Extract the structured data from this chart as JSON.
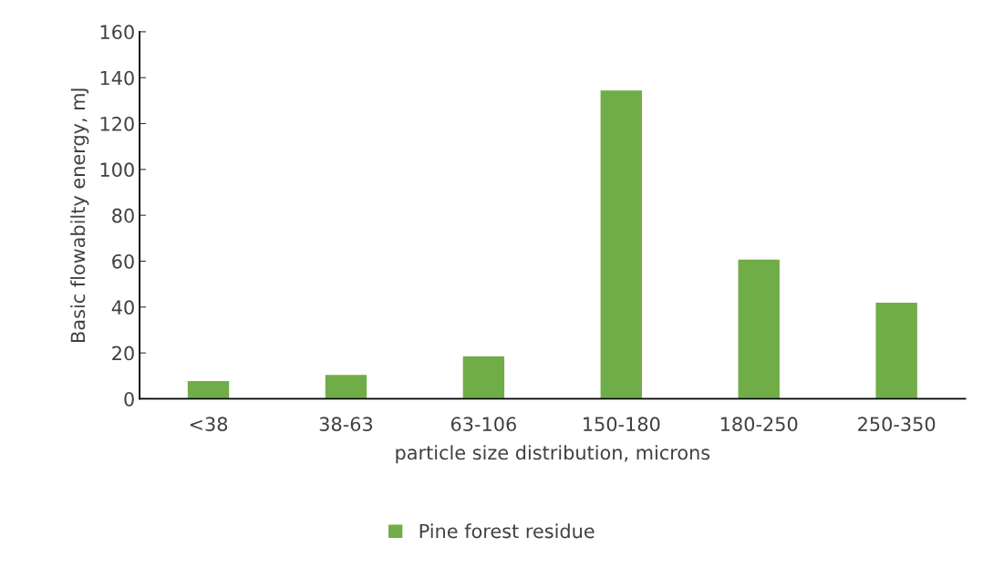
{
  "chart_data": {
    "type": "bar",
    "categories": [
      "<38",
      "38-63",
      "63-106",
      "150-180",
      "180-250",
      "250-350"
    ],
    "series": [
      {
        "name": "Pine forest residue",
        "color": "#70ad47",
        "values": [
          8.0,
          10.7,
          18.8,
          134.7,
          61.0,
          42.2
        ]
      }
    ],
    "xlabel": "particle size distribution, microns",
    "ylabel": "Basic flowabilty energy, mJ",
    "ylim": [
      0,
      160
    ],
    "yticks": [
      0,
      20,
      40,
      60,
      80,
      100,
      120,
      140,
      160
    ],
    "grid": false,
    "legend": "bottom"
  }
}
